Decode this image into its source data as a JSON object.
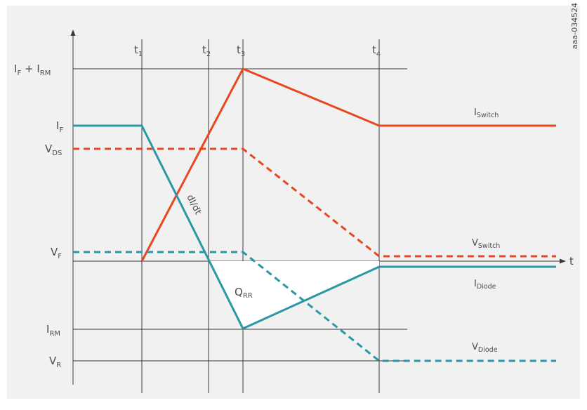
{
  "colors": {
    "panel": "#f1f1f1",
    "grid": "#3a3a3a",
    "switch": "#e8481f",
    "diode": "#2b97a6",
    "text": "#4d4d4d",
    "qrr_fill": "#ffffff"
  },
  "time_labels": [
    {
      "main": "t",
      "sub": "1"
    },
    {
      "main": "t",
      "sub": "2"
    },
    {
      "main": "t",
      "sub": "3"
    },
    {
      "main": "t",
      "sub": "4"
    }
  ],
  "axis_t_label": "t",
  "level_labels": {
    "if_irm": {
      "a_main": "I",
      "a_sub": "F",
      "plus": " + ",
      "b_main": "I",
      "b_sub": "RM"
    },
    "if": {
      "main": "I",
      "sub": "F"
    },
    "vds": {
      "main": "V",
      "sub": "DS"
    },
    "vf": {
      "main": "V",
      "sub": "F"
    },
    "irm": {
      "main": "I",
      "sub": "RM"
    },
    "vr": {
      "main": "V",
      "sub": "R"
    }
  },
  "curve_labels": {
    "i_switch": {
      "main": "I",
      "sub": "Switch"
    },
    "v_switch": {
      "main": "V",
      "sub": "Switch"
    },
    "i_diode": {
      "main": "I",
      "sub": "Diode"
    },
    "v_diode": {
      "main": "V",
      "sub": "Diode"
    }
  },
  "qrr_label": {
    "main": "Q",
    "sub": "RR"
  },
  "didt_label": "dI/dt",
  "figure_id": "aaa-034524"
}
